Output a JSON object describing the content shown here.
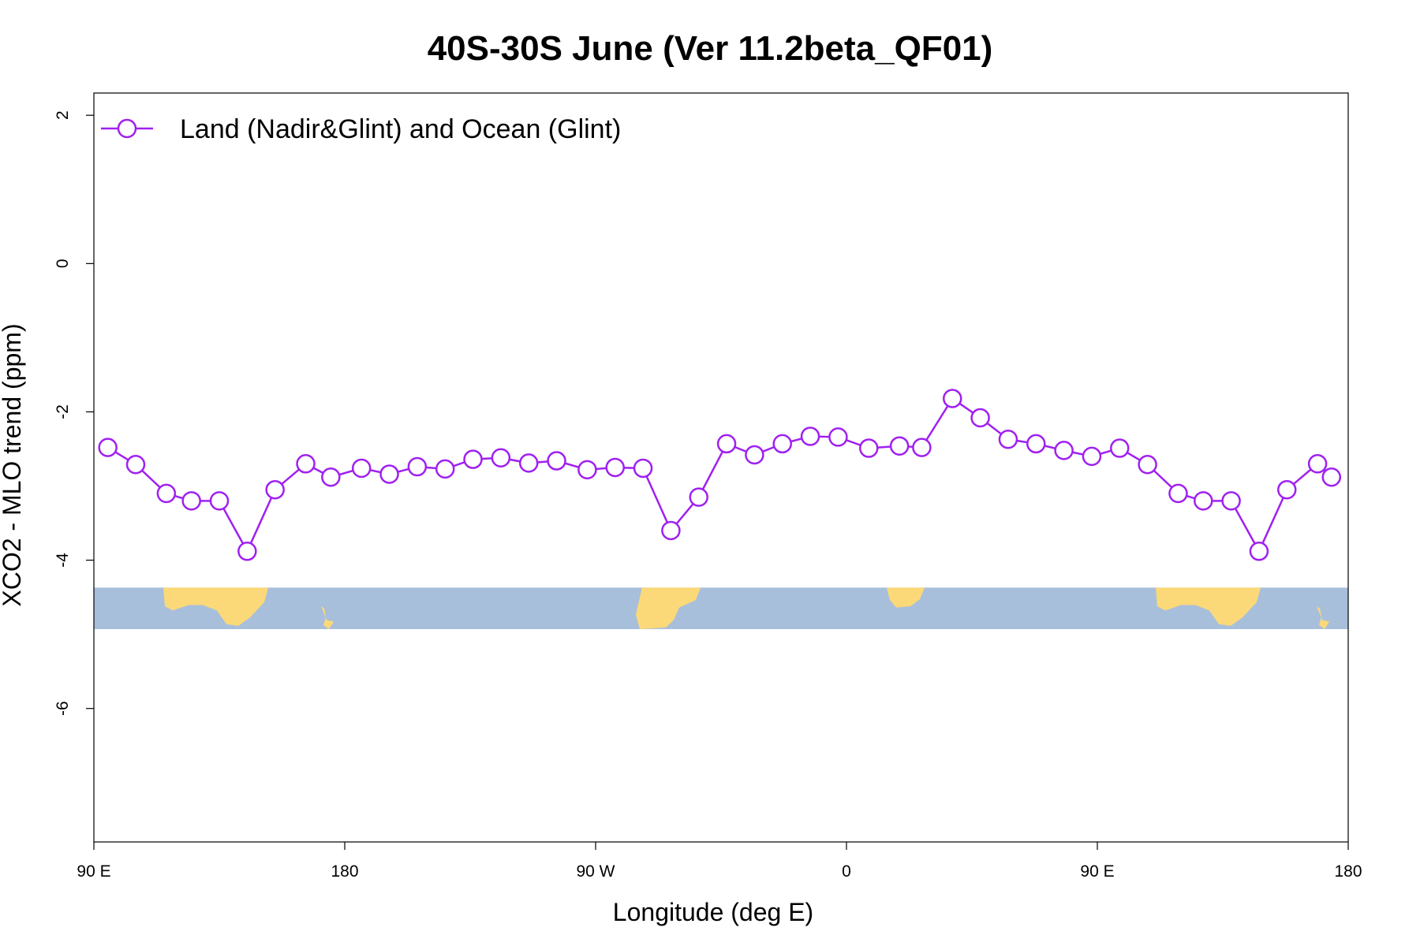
{
  "colors": {
    "series": "#A020F0",
    "ocean": "#A8BFDB",
    "land": "#FCD978",
    "axis": "#000000",
    "background": "#FFFFFF"
  },
  "chart_data": {
    "type": "line",
    "title": "40S-30S June (Ver 11.2beta_QF01)",
    "xlabel": "Longitude (deg E)",
    "ylabel": "XCO2 - MLO trend (ppm)",
    "xlim": [
      90,
      540
    ],
    "ylim": [
      -7.8,
      2.3
    ],
    "x_ticks": [
      {
        "value": 90,
        "label": "90 E"
      },
      {
        "value": 180,
        "label": "180"
      },
      {
        "value": 270,
        "label": "90 W"
      },
      {
        "value": 360,
        "label": "0"
      },
      {
        "value": 450,
        "label": "90 E"
      },
      {
        "value": 540,
        "label": "180"
      }
    ],
    "y_ticks": [
      {
        "value": 2,
        "label": "2"
      },
      {
        "value": 0,
        "label": "0"
      },
      {
        "value": -2,
        "label": "-2"
      },
      {
        "value": -4,
        "label": "-4"
      },
      {
        "value": -6,
        "label": "-6"
      }
    ],
    "grid": false,
    "legend_position": "top-left",
    "map_strip": {
      "y_range": [
        -4.93,
        -4.37
      ]
    },
    "series": [
      {
        "name": "Land (Nadir&Glint) and Ocean (Glint)",
        "marker": "open-circle",
        "x": [
          95,
          105,
          116,
          125,
          135,
          145,
          155,
          166,
          175,
          186,
          196,
          206,
          216,
          226,
          236,
          246,
          256,
          267,
          277,
          287,
          297,
          307,
          317,
          327,
          337,
          347,
          357,
          368,
          379,
          387,
          398,
          408,
          418,
          428,
          438,
          448,
          458,
          468,
          479,
          488,
          498,
          508,
          518,
          529,
          534
        ],
        "y": [
          -2.48,
          -2.71,
          -3.1,
          -3.2,
          -3.2,
          -3.88,
          -3.05,
          -2.7,
          -2.88,
          -2.76,
          -2.84,
          -2.74,
          -2.77,
          -2.64,
          -2.62,
          -2.69,
          -2.66,
          -2.78,
          -2.75,
          -2.76,
          -3.6,
          -3.15,
          -2.43,
          -2.58,
          -2.43,
          -2.33,
          -2.34,
          -2.49,
          -2.46,
          -2.48,
          -1.82,
          -2.08,
          -2.37,
          -2.43,
          -2.52,
          -2.6,
          -2.49,
          -2.71,
          -3.1,
          -3.2,
          -3.2,
          -3.88,
          -3.05,
          -2.7,
          -2.88
        ]
      }
    ]
  }
}
